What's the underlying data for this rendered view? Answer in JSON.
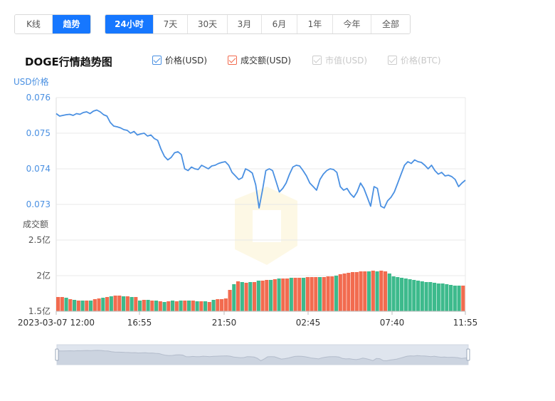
{
  "view_tabs": [
    {
      "label": "K线",
      "active": false
    },
    {
      "label": "趋势",
      "active": true
    }
  ],
  "range_tabs": [
    {
      "label": "24小时",
      "active": true
    },
    {
      "label": "7天",
      "active": false
    },
    {
      "label": "30天",
      "active": false
    },
    {
      "label": "3月",
      "active": false
    },
    {
      "label": "6月",
      "active": false
    },
    {
      "label": "1年",
      "active": false
    },
    {
      "label": "今年",
      "active": false
    },
    {
      "label": "全部",
      "active": false
    }
  ],
  "chart_title": "DOGE行情趋势图",
  "legend": [
    {
      "label": "价格(USD)",
      "checked": true,
      "enabled": true,
      "color": "#4a90e2"
    },
    {
      "label": "成交额(USD)",
      "checked": true,
      "enabled": true,
      "color": "#f26b4f"
    },
    {
      "label": "市值(USD)",
      "checked": true,
      "enabled": false,
      "color": "#cccccc"
    },
    {
      "label": "价格(BTC)",
      "checked": true,
      "enabled": false,
      "color": "#cccccc"
    }
  ],
  "colors": {
    "accent": "#1677ff",
    "price_line": "#4a90e2",
    "volume_up": "#f26b4f",
    "volume_down": "#3dba8c",
    "axis_blue": "#4a90e2",
    "grid": "#e8e8e8"
  },
  "chart_data": [
    {
      "type": "line",
      "ylabel": "USD价格",
      "yticks": [
        "0.076",
        "0.075",
        "0.074",
        "0.073"
      ],
      "ylim": [
        0.073,
        0.076
      ],
      "xticks": [
        "2023-03-07 12:00",
        "16:55",
        "21:50",
        "02:45",
        "07:40",
        "11:55"
      ],
      "series": [
        {
          "name": "价格(USD)",
          "values": [
            0.07555,
            0.07548,
            0.0755,
            0.07552,
            0.07553,
            0.0755,
            0.07555,
            0.07553,
            0.07558,
            0.0756,
            0.07555,
            0.07562,
            0.07565,
            0.0756,
            0.07552,
            0.07548,
            0.0753,
            0.0752,
            0.07518,
            0.07515,
            0.0751,
            0.07508,
            0.075,
            0.07505,
            0.07495,
            0.07498,
            0.075,
            0.07492,
            0.07495,
            0.07485,
            0.0748,
            0.07455,
            0.07435,
            0.07425,
            0.07432,
            0.07445,
            0.07448,
            0.0744,
            0.074,
            0.07395,
            0.07405,
            0.074,
            0.07398,
            0.0741,
            0.07405,
            0.074,
            0.07408,
            0.0741,
            0.07415,
            0.07418,
            0.0742,
            0.0741,
            0.0739,
            0.0738,
            0.0737,
            0.07375,
            0.074,
            0.07395,
            0.07388,
            0.07355,
            0.0729,
            0.0734,
            0.07395,
            0.074,
            0.07395,
            0.07365,
            0.07335,
            0.07345,
            0.0736,
            0.07385,
            0.07405,
            0.0741,
            0.07408,
            0.07395,
            0.0738,
            0.0736,
            0.0735,
            0.0734,
            0.0737,
            0.07385,
            0.07395,
            0.074,
            0.07398,
            0.0739,
            0.0735,
            0.0734,
            0.07345,
            0.0733,
            0.0732,
            0.07335,
            0.0736,
            0.07345,
            0.0732,
            0.07295,
            0.0735,
            0.07345,
            0.07295,
            0.0729,
            0.0731,
            0.0732,
            0.07335,
            0.0736,
            0.07385,
            0.0741,
            0.0742,
            0.07415,
            0.07425,
            0.0742,
            0.07418,
            0.0741,
            0.074,
            0.0741,
            0.07395,
            0.07385,
            0.0739,
            0.0738,
            0.07382,
            0.07378,
            0.0737,
            0.0735,
            0.0736,
            0.07368
          ]
        }
      ]
    },
    {
      "type": "bar",
      "ylabel": "成交额",
      "yticks": [
        "2.5亿",
        "2亿",
        "1.5亿"
      ],
      "ylim": [
        1.5,
        2.5
      ],
      "unit": "亿",
      "xticks": [
        "2023-03-07 12:00",
        "16:55",
        "21:50",
        "02:45",
        "07:40",
        "11:55"
      ],
      "series": [
        {
          "name": "成交额(USD)",
          "values": [
            1.7,
            1.7,
            1.69,
            1.67,
            1.66,
            1.65,
            1.65,
            1.65,
            1.65,
            1.67,
            1.68,
            1.69,
            1.7,
            1.71,
            1.72,
            1.72,
            1.71,
            1.71,
            1.7,
            1.7,
            1.65,
            1.66,
            1.66,
            1.65,
            1.65,
            1.64,
            1.63,
            1.64,
            1.65,
            1.64,
            1.65,
            1.65,
            1.65,
            1.65,
            1.64,
            1.64,
            1.64,
            1.63,
            1.66,
            1.67,
            1.67,
            1.68,
            1.8,
            1.88,
            1.92,
            1.91,
            1.9,
            1.91,
            1.91,
            1.93,
            1.93,
            1.94,
            1.94,
            1.95,
            1.96,
            1.96,
            1.96,
            1.97,
            1.97,
            1.97,
            1.97,
            1.98,
            1.98,
            1.98,
            1.98,
            1.98,
            1.99,
            1.99,
            2.0,
            2.02,
            2.03,
            2.04,
            2.05,
            2.05,
            2.06,
            2.06,
            2.06,
            2.07,
            2.06,
            2.07,
            2.06,
            2.03,
            1.99,
            1.98,
            1.97,
            1.96,
            1.95,
            1.94,
            1.93,
            1.92,
            1.91,
            1.91,
            1.9,
            1.89,
            1.89,
            1.88,
            1.87,
            1.86,
            1.86,
            1.86
          ],
          "up": [
            1,
            1,
            0,
            1,
            0,
            1,
            0,
            1,
            0,
            1,
            1,
            0,
            1,
            0,
            1,
            1,
            0,
            1,
            0,
            1,
            0,
            1,
            0,
            1,
            0,
            1,
            0,
            1,
            0,
            1,
            0,
            1,
            0,
            1,
            0,
            1,
            0,
            1,
            0,
            1,
            1,
            1,
            1,
            0,
            1,
            0,
            1,
            0,
            1,
            0,
            1,
            1,
            0,
            1,
            0,
            1,
            1,
            0,
            1,
            1,
            0,
            1,
            1,
            1,
            0,
            1,
            1,
            1,
            0,
            1,
            1,
            1,
            1,
            1,
            1,
            1,
            0,
            1,
            0,
            1,
            1,
            0,
            0,
            0,
            0,
            0,
            0,
            0,
            0,
            0,
            0,
            0,
            0,
            0,
            0,
            0,
            0,
            0,
            0,
            1
          ]
        }
      ]
    }
  ]
}
